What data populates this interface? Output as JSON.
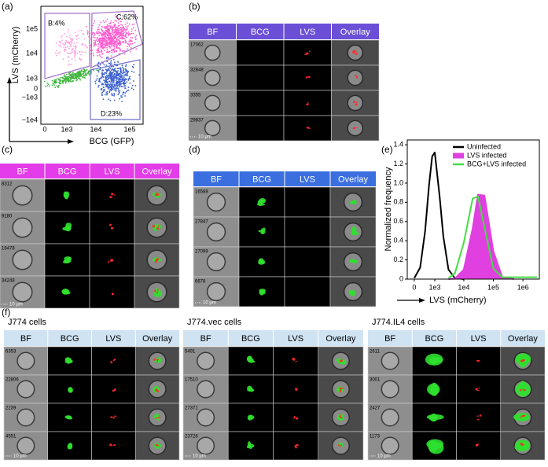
{
  "panels": {
    "a": {
      "label": "(a)",
      "y_label": "LVS (mCherry)",
      "x_label": "BCG (GFP)",
      "x_ticks": [
        "0",
        "1e3",
        "1e4",
        "1e5"
      ],
      "y_ticks": [
        "1e5",
        "1e4",
        "1e3",
        "0",
        "−1e3",
        "−1e4"
      ],
      "gates": [
        "B:4%",
        "C:62%",
        "D:23%"
      ]
    },
    "b": {
      "label": "(b)",
      "columns": [
        "BF",
        "BCG",
        "LVS",
        "Overlay"
      ],
      "cells": [
        "17062",
        "32848",
        "3355",
        "29837"
      ],
      "scale_bar": "10 µm"
    },
    "c": {
      "label": "(c)",
      "columns": [
        "BF",
        "BCG",
        "LVS",
        "Overlay"
      ],
      "cells": [
        "8312",
        "9180",
        "16478",
        "34248"
      ],
      "scale_bar": "10 µm"
    },
    "d": {
      "label": "(d)",
      "columns": [
        "BF",
        "BCG",
        "LVS",
        "Overlay"
      ],
      "cells": [
        "16588",
        "27847",
        "27099",
        "6678"
      ],
      "scale_bar": "10 µm"
    },
    "e": {
      "label": "(e)"
    },
    "f": {
      "label": "(f)",
      "tables": [
        {
          "title": "J774 cells",
          "columns": [
            "BF",
            "BCG",
            "LVS",
            "Overlay"
          ],
          "cells": [
            "6353",
            "22806",
            "2239",
            "4551"
          ],
          "scale_bar": "10 µm"
        },
        {
          "title": "J774.vec cells",
          "columns": [
            "BF",
            "BCG",
            "LVS",
            "Overlay"
          ],
          "cells": [
            "5491",
            "17510",
            "27371",
            "23728"
          ],
          "scale_bar": "10 µm"
        },
        {
          "title": "J774.IL4 cells",
          "columns": [
            "BF",
            "BCG",
            "LVS",
            "Overlay"
          ],
          "cells": [
            "2611",
            "3001",
            "2427",
            "1173"
          ],
          "scale_bar": "10 µm"
        }
      ]
    }
  },
  "chart_data": {
    "type": "line",
    "x_label": "LVS (mCherry)",
    "y_label": "Normalized frequency",
    "x_scale": "asinh",
    "xlim": [
      -240,
      3600000
    ],
    "xticks": [
      0,
      {
        "value": 1000,
        "label": "1e3"
      },
      {
        "value": 10000,
        "label": "1e4"
      },
      {
        "value": 100000,
        "label": "1e5"
      },
      {
        "value": 1000000,
        "label": "1e6"
      }
    ],
    "ylim": [
      0,
      1.45
    ],
    "yticks": [
      0,
      0.2,
      0.4,
      0.6,
      0.8,
      {
        "value": 1,
        "label": "1.0"
      },
      1.2,
      1.4
    ],
    "legend": "upper right",
    "series": [
      {
        "name": "Uninfected",
        "color": "#000000",
        "fill": false,
        "x": [
          0,
          200,
          400,
          600,
          800,
          1000,
          1500,
          2000,
          3000,
          5000,
          10000
        ],
        "values": [
          0.01,
          0.12,
          0.5,
          0.98,
          1.28,
          1.32,
          0.85,
          0.45,
          0.1,
          0.01,
          0
        ]
      },
      {
        "name": "LVS infected",
        "color": "#e040e0",
        "fill": true,
        "x": [
          3000,
          5000,
          10000,
          20000,
          30000,
          50000,
          100000,
          200000,
          500000
        ],
        "values": [
          0,
          0.005,
          0.1,
          0.53,
          0.88,
          0.87,
          0.29,
          0.02,
          0
        ]
      },
      {
        "name": "BCG+LVS infected",
        "color": "#44dd44",
        "fill": false,
        "x": [
          3000,
          5000,
          10000,
          20000,
          30000,
          50000,
          100000,
          200000,
          500000,
          1000000,
          3000000
        ],
        "values": [
          0.01,
          0.06,
          0.38,
          0.84,
          0.86,
          0.54,
          0.11,
          0.02,
          0.02,
          0.02,
          0.02
        ]
      }
    ]
  }
}
